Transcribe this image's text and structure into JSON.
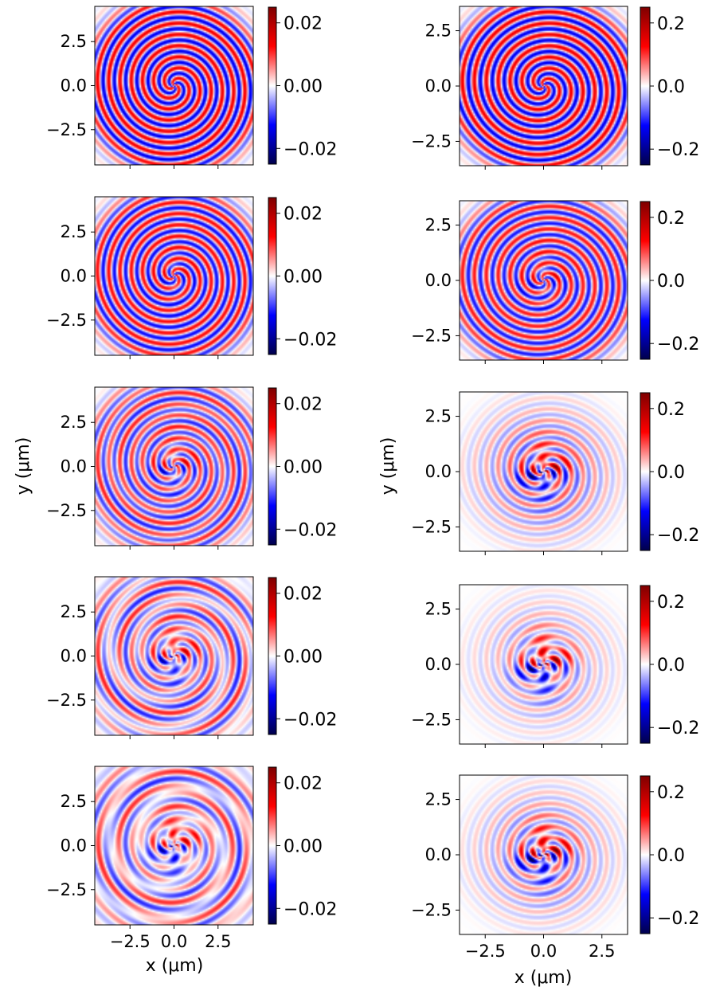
{
  "figure": {
    "rows": 5,
    "cols": 2,
    "colormap": "seismic",
    "colormap_colors": {
      "negative_dark": "#00004c",
      "negative": "#0000ff",
      "zero": "#ffffff",
      "positive": "#ff0000",
      "positive_dark": "#7f0000"
    }
  },
  "columns": [
    {
      "id": "left",
      "ylabel": "y (μm)",
      "xlabel": "x (μm)",
      "yticks": [
        "2.5",
        "0.0",
        "−2.5"
      ],
      "ytick_values": [
        2.5,
        0.0,
        -2.5
      ],
      "xticks": [
        "−2.5",
        "0.0",
        "2.5"
      ],
      "xtick_values": [
        -2.5,
        0.0,
        2.5
      ],
      "xlim": [
        -4.5,
        4.5
      ],
      "ylim": [
        -4.5,
        4.5
      ],
      "colorbar_ticks": [
        "0.02",
        "0.00",
        "−0.02"
      ],
      "colorbar_values": [
        0.02,
        0.0,
        -0.02
      ],
      "colorbar_range": [
        -0.025,
        0.025
      ]
    },
    {
      "id": "right",
      "ylabel": "y (μm)",
      "xlabel": "x (μm)",
      "yticks": [
        "2.5",
        "0.0",
        "−2.5"
      ],
      "ytick_values": [
        2.5,
        0.0,
        -2.5
      ],
      "xticks": [
        "−2.5",
        "0.0",
        "2.5"
      ],
      "xtick_values": [
        -2.5,
        0.0,
        2.5
      ],
      "xlim": [
        -3.6,
        3.6
      ],
      "ylim": [
        -3.6,
        3.6
      ],
      "colorbar_ticks": [
        "0.2",
        "0.0",
        "−0.2"
      ],
      "colorbar_values": [
        0.2,
        0.0,
        -0.2
      ],
      "colorbar_range": [
        -0.25,
        0.25
      ]
    }
  ],
  "chart_data": [
    {
      "type": "heatmap",
      "panel": "left-1",
      "xlim": [
        -4.5,
        4.5
      ],
      "ylim": [
        -4.5,
        4.5
      ],
      "pattern": "spiral",
      "spiral_strength": 1.0,
      "core_blobs": 0.0,
      "outer_ring": 0.0,
      "vrange": [
        -0.025,
        0.025
      ]
    },
    {
      "type": "heatmap",
      "panel": "left-2",
      "xlim": [
        -4.5,
        4.5
      ],
      "ylim": [
        -4.5,
        4.5
      ],
      "pattern": "spiral",
      "spiral_strength": 0.9,
      "core_blobs": 0.2,
      "outer_ring": 0.0,
      "vrange": [
        -0.025,
        0.025
      ]
    },
    {
      "type": "heatmap",
      "panel": "left-3",
      "xlim": [
        -4.5,
        4.5
      ],
      "ylim": [
        -4.5,
        4.5
      ],
      "pattern": "spiral",
      "spiral_strength": 0.7,
      "core_blobs": 0.5,
      "outer_ring": 0.15,
      "vrange": [
        -0.025,
        0.025
      ]
    },
    {
      "type": "heatmap",
      "panel": "left-4",
      "xlim": [
        -4.5,
        4.5
      ],
      "ylim": [
        -4.5,
        4.5
      ],
      "pattern": "spiral",
      "spiral_strength": 0.5,
      "core_blobs": 0.8,
      "outer_ring": 0.4,
      "vrange": [
        -0.025,
        0.025
      ]
    },
    {
      "type": "heatmap",
      "panel": "left-5",
      "xlim": [
        -4.5,
        4.5
      ],
      "ylim": [
        -4.5,
        4.5
      ],
      "pattern": "rings",
      "spiral_strength": 0.3,
      "core_blobs": 1.0,
      "outer_ring": 0.6,
      "vrange": [
        -0.025,
        0.025
      ]
    },
    {
      "type": "heatmap",
      "panel": "right-1",
      "xlim": [
        -3.6,
        3.6
      ],
      "ylim": [
        -3.6,
        3.6
      ],
      "pattern": "spiral",
      "spiral_strength": 1.0,
      "core_blobs": 0.0,
      "outer_ring": 0.0,
      "vrange": [
        -0.25,
        0.25
      ]
    },
    {
      "type": "heatmap",
      "panel": "right-2",
      "xlim": [
        -3.6,
        3.6
      ],
      "ylim": [
        -3.6,
        3.6
      ],
      "pattern": "spiral",
      "spiral_strength": 0.85,
      "core_blobs": 0.3,
      "outer_ring": 0.0,
      "vrange": [
        -0.25,
        0.25
      ]
    },
    {
      "type": "heatmap",
      "panel": "right-3",
      "xlim": [
        -3.6,
        3.6
      ],
      "ylim": [
        -3.6,
        3.6
      ],
      "pattern": "localized",
      "spiral_strength": 0.55,
      "core_blobs": 0.8,
      "outer_ring": 0.0,
      "vrange": [
        -0.25,
        0.25
      ]
    },
    {
      "type": "heatmap",
      "panel": "right-4",
      "xlim": [
        -3.6,
        3.6
      ],
      "ylim": [
        -3.6,
        3.6
      ],
      "pattern": "localized",
      "spiral_strength": 0.35,
      "core_blobs": 1.0,
      "outer_ring": 0.0,
      "vrange": [
        -0.25,
        0.25
      ]
    },
    {
      "type": "heatmap",
      "panel": "right-5",
      "xlim": [
        -3.6,
        3.6
      ],
      "ylim": [
        -3.6,
        3.6
      ],
      "pattern": "localized",
      "spiral_strength": 0.45,
      "core_blobs": 1.0,
      "outer_ring": 0.0,
      "vrange": [
        -0.25,
        0.25
      ]
    }
  ]
}
